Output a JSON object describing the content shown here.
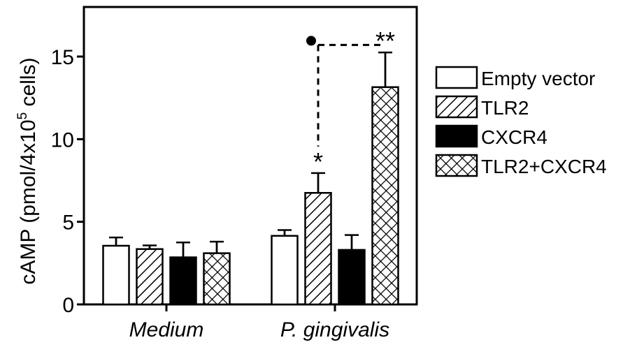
{
  "chart_data": {
    "type": "bar",
    "categories": [
      "Medium",
      "P. gingivalis"
    ],
    "ylabel_parts": {
      "pre": "cAMP (pmol/4x10",
      "sup": "5",
      "post": " cells)"
    },
    "xlabel": "",
    "ylim": [
      0,
      18
    ],
    "yticks": [
      0,
      5,
      10,
      15
    ],
    "legend_position": "right",
    "series": [
      {
        "name": "Empty vector",
        "pattern": "empty",
        "values": [
          3.55,
          4.15
        ],
        "errors": [
          0.5,
          0.35
        ]
      },
      {
        "name": "TLR2",
        "pattern": "diagonal",
        "values": [
          3.35,
          6.75
        ],
        "errors": [
          0.22,
          1.2
        ]
      },
      {
        "name": "CXCR4",
        "pattern": "solid",
        "values": [
          2.85,
          3.3
        ],
        "errors": [
          0.9,
          0.9
        ]
      },
      {
        "name": "TLR2+CXCR4",
        "pattern": "crosshatch",
        "values": [
          3.1,
          13.15
        ],
        "errors": [
          0.7,
          2.1
        ]
      }
    ],
    "annotations": [
      {
        "text": "*",
        "series": 1,
        "category": 1
      },
      {
        "text": "**",
        "series": 3,
        "category": 1
      }
    ],
    "comparison_marker": {
      "from_series": 1,
      "to_series": 3,
      "category": 1,
      "level": 15.7
    }
  }
}
